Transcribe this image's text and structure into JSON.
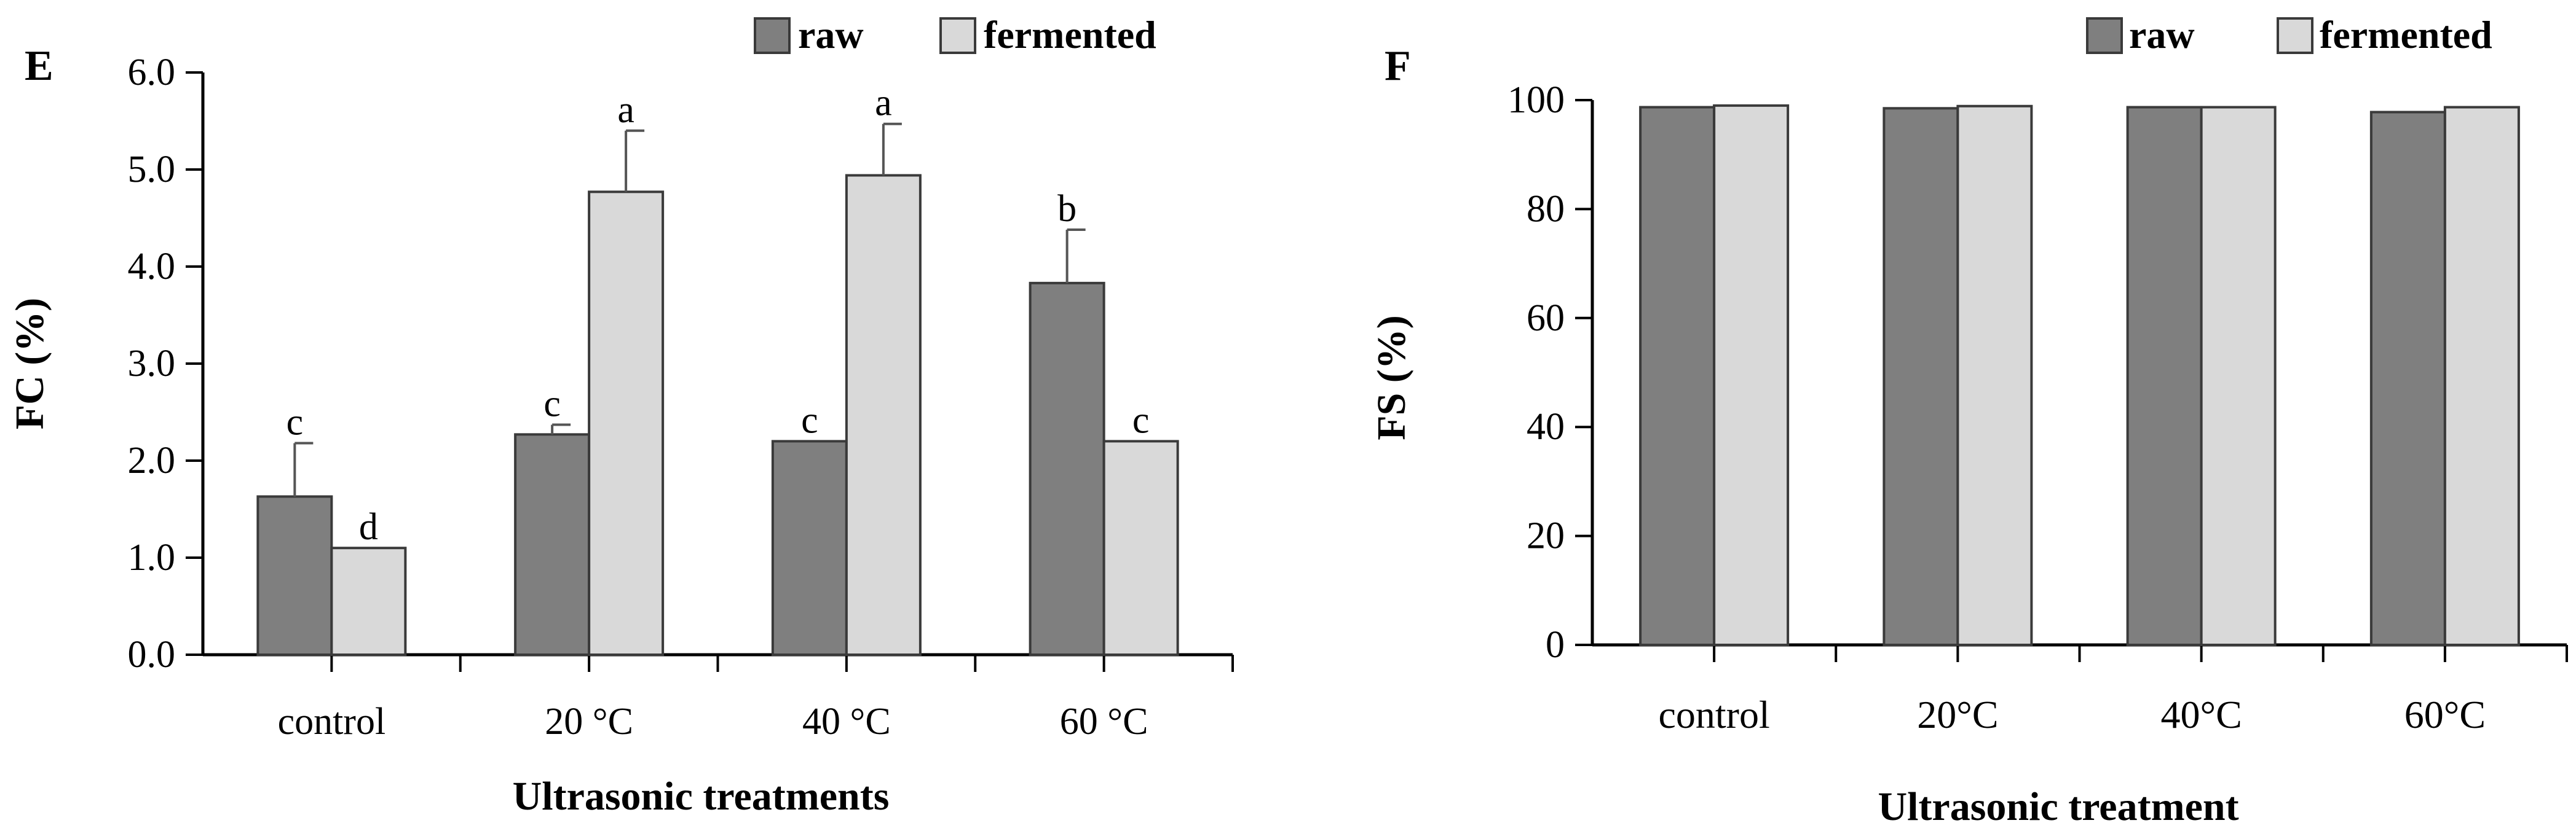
{
  "chart_data": [
    {
      "type": "bar",
      "panel_label": "E",
      "title": "",
      "categories": [
        "control",
        "20 °C",
        "40 °C",
        "60 °C"
      ],
      "series": [
        {
          "name": "raw",
          "color": "#7f7f7f",
          "values": [
            1.63,
            2.27,
            2.2,
            3.83
          ],
          "errors": [
            0.55,
            0.1,
            0.0,
            0.55
          ],
          "letters": [
            "c",
            "c",
            "c",
            "b"
          ]
        },
        {
          "name": "fermented",
          "color": "#d9d9d9",
          "values": [
            1.1,
            4.77,
            4.94,
            2.2
          ],
          "errors": [
            0.0,
            0.63,
            0.53,
            0.0
          ],
          "letters": [
            "d",
            "a",
            "a",
            "c"
          ]
        }
      ],
      "xlabel": "Ultrasonic treatments",
      "ylabel": "FC (%)",
      "ylim": [
        0,
        6
      ],
      "yticks": [
        "0.0",
        "1.0",
        "2.0",
        "3.0",
        "4.0",
        "5.0",
        "6.0"
      ],
      "grid": false,
      "legend": "top-right"
    },
    {
      "type": "bar",
      "panel_label": "F",
      "title": "",
      "categories": [
        "control",
        "20°C",
        "40°C",
        "60°C"
      ],
      "series": [
        {
          "name": "raw",
          "color": "#7f7f7f",
          "values": [
            98.7,
            98.5,
            98.7,
            97.8
          ]
        },
        {
          "name": "fermented",
          "color": "#d9d9d9",
          "values": [
            99.0,
            98.9,
            98.7,
            98.7
          ]
        }
      ],
      "xlabel": "Ultrasonic treatment",
      "ylabel": "FS (%)",
      "ylim": [
        0,
        100
      ],
      "yticks": [
        "0",
        "20",
        "40",
        "60",
        "80",
        "100"
      ],
      "grid": false,
      "legend": "top-right"
    }
  ]
}
